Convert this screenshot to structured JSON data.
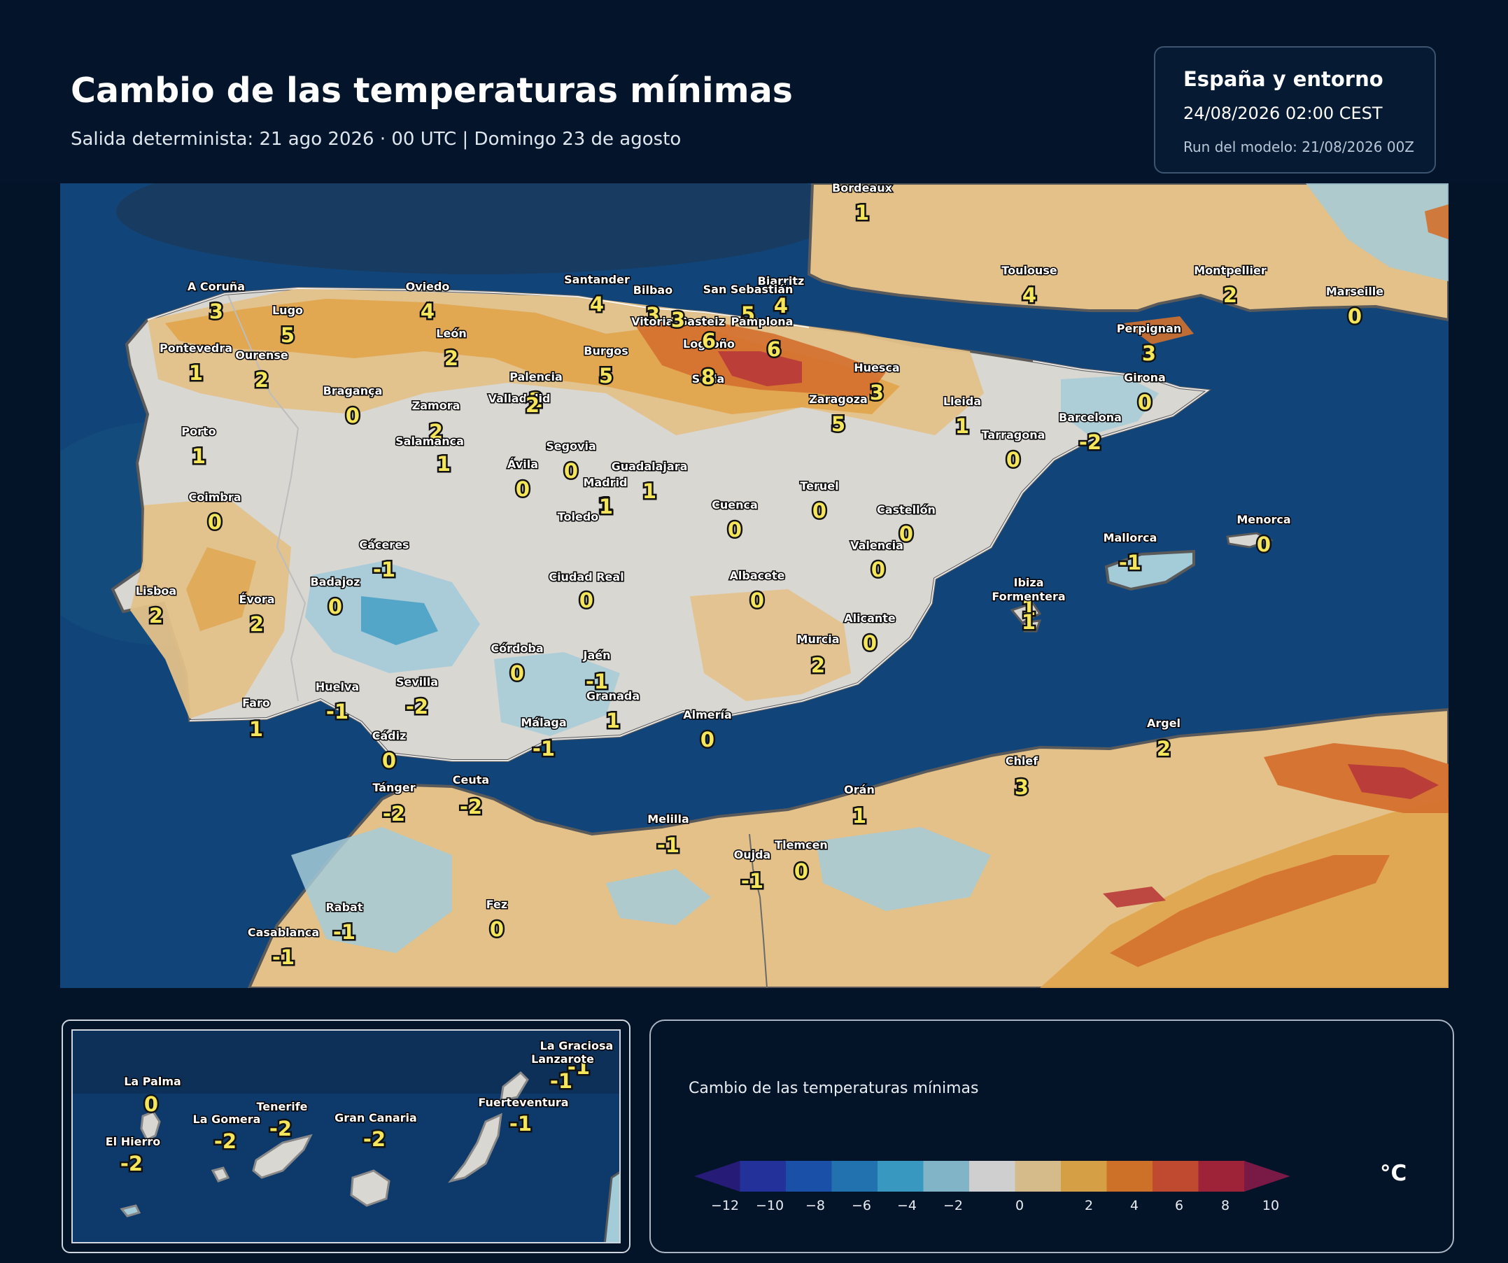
{
  "header": {
    "title": "Cambio de las temperaturas mínimas",
    "subtitle": "Salida determinista: 21 ago 2026 · 00 UTC  |  Domingo 23 de agosto"
  },
  "info": {
    "region": "España y entorno",
    "valid_time": "24/08/2026  02:00 CEST",
    "run": "Run del modelo: 21/08/2026 00Z"
  },
  "map": {
    "cities": [
      {
        "name": "Bordeaux",
        "value": "1"
      },
      {
        "name": "A Coruña",
        "value": "3"
      },
      {
        "name": "Lugo",
        "value": "5"
      },
      {
        "name": "Oviedo",
        "value": "4"
      },
      {
        "name": "Santander",
        "value": "4"
      },
      {
        "name": "Bilbao",
        "value": "3"
      },
      {
        "name": "Biarritz",
        "value": "4"
      },
      {
        "name": "San Sebastián",
        "value": "5"
      },
      {
        "name": "Vitoria-Gasteiz",
        "value": "3"
      },
      {
        "name": "Pamplona",
        "value": "6"
      },
      {
        "name": "Toulouse",
        "value": "4"
      },
      {
        "name": "Montpellier",
        "value": "2"
      },
      {
        "name": "Marseille",
        "value": "0"
      },
      {
        "name": "Pontevedra",
        "value": "1"
      },
      {
        "name": "Ourense",
        "value": "2"
      },
      {
        "name": "León",
        "value": "2"
      },
      {
        "name": "Burgos",
        "value": "5"
      },
      {
        "name": "Logroño",
        "value": "6"
      },
      {
        "name": "Soria",
        "value": "8"
      },
      {
        "name": "Perpignan",
        "value": "3"
      },
      {
        "name": "Huesca",
        "value": "3"
      },
      {
        "name": "Girona",
        "value": "0"
      },
      {
        "name": "Bragança",
        "value": "0"
      },
      {
        "name": "Palencia",
        "value": "2"
      },
      {
        "name": "Valladolid",
        "value": "2"
      },
      {
        "name": "Zaragoza",
        "value": "5"
      },
      {
        "name": "Lleida",
        "value": "1"
      },
      {
        "name": "Barcelona",
        "value": "-2"
      },
      {
        "name": "Zamora",
        "value": "2"
      },
      {
        "name": "Tarragona",
        "value": "0"
      },
      {
        "name": "Porto",
        "value": "1"
      },
      {
        "name": "Salamanca",
        "value": "1"
      },
      {
        "name": "Segovia",
        "value": "0"
      },
      {
        "name": "Ávila",
        "value": "0"
      },
      {
        "name": "Guadalajara",
        "value": "1"
      },
      {
        "name": "Madrid",
        "value": "1"
      },
      {
        "name": "Teruel",
        "value": "0"
      },
      {
        "name": "Coimbra",
        "value": "0"
      },
      {
        "name": "Cuenca",
        "value": "0"
      },
      {
        "name": "Toledo",
        "value": "1"
      },
      {
        "name": "Castellón",
        "value": "0"
      },
      {
        "name": "Menorca",
        "value": "0"
      },
      {
        "name": "Cáceres",
        "value": "-1"
      },
      {
        "name": "Valencia",
        "value": "0"
      },
      {
        "name": "Mallorca",
        "value": "-1"
      },
      {
        "name": "Badajoz",
        "value": "0"
      },
      {
        "name": "Ciudad Real",
        "value": "0"
      },
      {
        "name": "Albacete",
        "value": "0"
      },
      {
        "name": "Ibiza",
        "value": "1"
      },
      {
        "name": "Formentera",
        "value": "1"
      },
      {
        "name": "Lisboa",
        "value": "2"
      },
      {
        "name": "Évora",
        "value": "2"
      },
      {
        "name": "Alicante",
        "value": "0"
      },
      {
        "name": "Murcia",
        "value": "2"
      },
      {
        "name": "Córdoba",
        "value": "0"
      },
      {
        "name": "Jaén",
        "value": "-1"
      },
      {
        "name": "Huelva",
        "value": "-1"
      },
      {
        "name": "Sevilla",
        "value": "-2"
      },
      {
        "name": "Granada",
        "value": "1"
      },
      {
        "name": "Faro",
        "value": "1"
      },
      {
        "name": "Almería",
        "value": "0"
      },
      {
        "name": "Málaga",
        "value": "-1"
      },
      {
        "name": "Cádiz",
        "value": "0"
      },
      {
        "name": "Argel",
        "value": "2"
      },
      {
        "name": "Chlef",
        "value": "3"
      },
      {
        "name": "Ceuta",
        "value": "-2"
      },
      {
        "name": "Tánger",
        "value": "-2"
      },
      {
        "name": "Orán",
        "value": "1"
      },
      {
        "name": "Melilla",
        "value": "-1"
      },
      {
        "name": "Tlemcen",
        "value": "0"
      },
      {
        "name": "Oujda",
        "value": "-1"
      },
      {
        "name": "Fez",
        "value": "0"
      },
      {
        "name": "Rabat",
        "value": "-1"
      },
      {
        "name": "Casablanca",
        "value": "-1"
      }
    ]
  },
  "inset": {
    "islands": [
      {
        "name": "La Graciosa",
        "value": "-1"
      },
      {
        "name": "Lanzarote",
        "value": "-1"
      },
      {
        "name": "La Palma",
        "value": "0"
      },
      {
        "name": "Tenerife",
        "value": "-2"
      },
      {
        "name": "Fuerteventura",
        "value": "-1"
      },
      {
        "name": "La Gomera",
        "value": "-2"
      },
      {
        "name": "Gran Canaria",
        "value": "-2"
      },
      {
        "name": "El Hierro",
        "value": "-2"
      }
    ]
  },
  "legend": {
    "title": "Cambio de las temperaturas mínimas",
    "unit": "°C",
    "ticks": [
      "−12",
      "−10",
      "−8",
      "−6",
      "−4",
      "−2",
      "0",
      "2",
      "4",
      "6",
      "8",
      "10",
      "12"
    ],
    "colors": [
      "#261c78",
      "#23329a",
      "#1a50a8",
      "#2272b0",
      "#3898c0",
      "#82b4c8",
      "#cfcfcf",
      "#d6bb8a",
      "#d5a045",
      "#cd7028",
      "#c04a30",
      "#9e2238",
      "#781a45"
    ]
  },
  "colors": {
    "sea": "#11457a",
    "land_neutral": "#d9d7d2",
    "warm_light": "#e3c189",
    "warm_mid": "#e0a54e",
    "warm_strong": "#d4702e",
    "hot": "#b83a3a",
    "cool": "#a4cbd8",
    "cool_mid": "#4aa2c8"
  }
}
